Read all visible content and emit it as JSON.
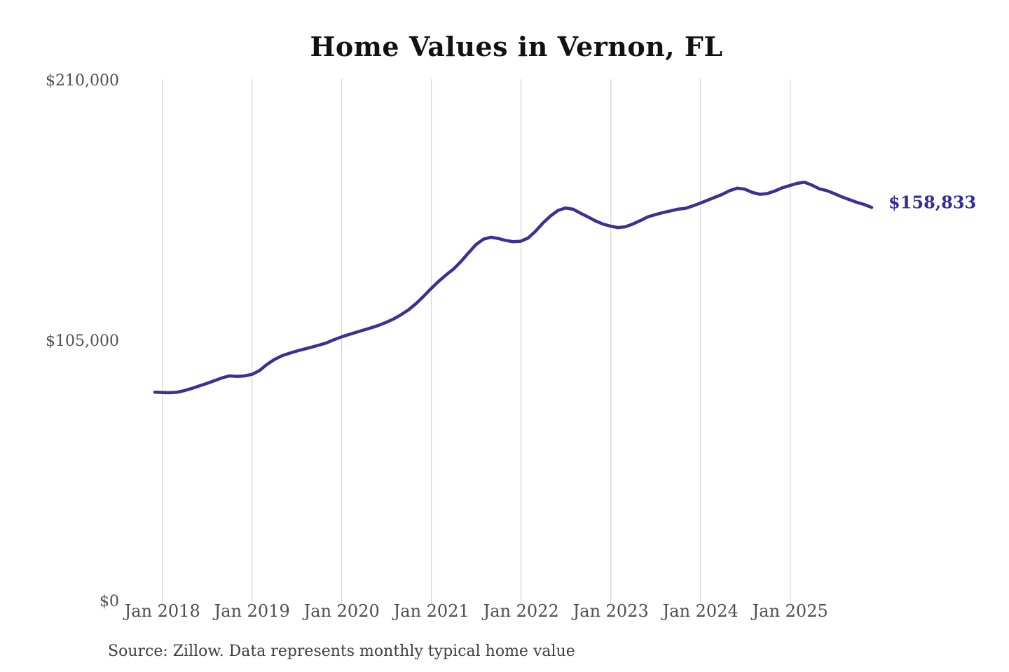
{
  "title": "Home Values in Vernon, FL",
  "annotation": {
    "latest_value_label": "$158,833"
  },
  "source_note": "Source: Zillow. Data represents monthly typical home value",
  "colors": {
    "line": "#3a3191",
    "annotation": "#322d96",
    "grid": "#cccccc",
    "tick_text": "#4f4f4f",
    "title_text": "#121212",
    "source_text": "#3f3f3f",
    "background": "#ffffff"
  },
  "chart_data": {
    "type": "line",
    "title": "Home Values in Vernon, FL",
    "xlabel": "",
    "ylabel": "",
    "x_start": "2017-12",
    "x_end": "2025-12",
    "x_interval": "monthly",
    "x_tick_labels": [
      "Jan 2018",
      "Jan 2019",
      "Jan 2020",
      "Jan 2021",
      "Jan 2022",
      "Jan 2023",
      "Jan 2024",
      "Jan 2025"
    ],
    "y_ticks": [
      0,
      105000,
      210000
    ],
    "y_tick_labels": [
      "$0",
      "$105,000",
      "$210,000"
    ],
    "ylim": [
      0,
      210000
    ],
    "grid": "vertical-only",
    "legend": "none",
    "series": [
      {
        "name": "Monthly typical home value",
        "last_value": 158833,
        "values": [
          84300,
          84200,
          84100,
          84300,
          85000,
          85900,
          86900,
          87900,
          89000,
          90100,
          90900,
          90700,
          90900,
          91500,
          93000,
          95500,
          97500,
          99000,
          100000,
          100900,
          101700,
          102500,
          103300,
          104200,
          105500,
          106600,
          107600,
          108500,
          109400,
          110300,
          111300,
          112500,
          113900,
          115600,
          117600,
          120100,
          123000,
          126100,
          129000,
          131600,
          134000,
          137000,
          140500,
          143800,
          146000,
          146800,
          146300,
          145500,
          145000,
          145200,
          146500,
          149300,
          152600,
          155400,
          157600,
          158600,
          158100,
          156500,
          155000,
          153400,
          152100,
          151300,
          150700,
          151000,
          152100,
          153500,
          155000,
          155900,
          156700,
          157400,
          158100,
          158400,
          159400,
          160500,
          161700,
          162900,
          164100,
          165600,
          166600,
          166200,
          164900,
          164100,
          164400,
          165400,
          166700,
          167600,
          168500,
          169000,
          167800,
          166300,
          165600,
          164400,
          163100,
          162000,
          160900,
          160000,
          158833
        ]
      }
    ]
  }
}
